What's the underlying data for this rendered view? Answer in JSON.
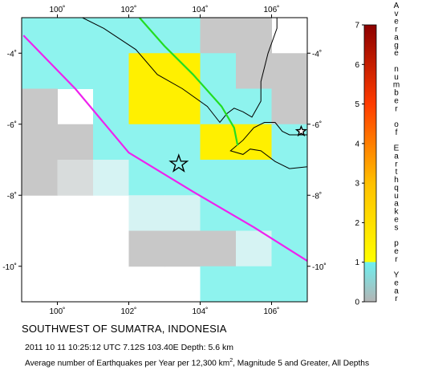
{
  "title": "SOUTHWEST OF SUMATRA, INDONESIA",
  "event_info": "2011 10 11 10:25:12 UTC 7.12S 103.40E Depth: 5.6 km",
  "caption": {
    "prefix": "Average number of Earthquakes per Year per 12,300 km",
    "sup": "2",
    "suffix": ", Magnitude 5 and Greater, All Depths"
  },
  "map": {
    "lon_range": [
      99,
      107
    ],
    "lat_range": [
      -11,
      -3
    ],
    "x_ticks": [
      {
        "value": 100,
        "label": "100˚"
      },
      {
        "value": 102,
        "label": "102˚"
      },
      {
        "value": 104,
        "label": "104˚"
      },
      {
        "value": 106,
        "label": "106˚"
      }
    ],
    "y_ticks": [
      {
        "value": -4,
        "label": "-4˚"
      },
      {
        "value": -6,
        "label": "-6˚"
      },
      {
        "value": -8,
        "label": "-8˚"
      },
      {
        "value": -10,
        "label": "-10˚"
      }
    ],
    "cell_size_deg": 1,
    "cells": [
      {
        "lon": 99,
        "lat": -3,
        "level": "cyan"
      },
      {
        "lon": 100,
        "lat": -3,
        "level": "cyan"
      },
      {
        "lon": 101,
        "lat": -3,
        "level": "cyan"
      },
      {
        "lon": 102,
        "lat": -3,
        "level": "cyan"
      },
      {
        "lon": 103,
        "lat": -3,
        "level": "cyan"
      },
      {
        "lon": 104,
        "lat": -3,
        "level": "gray"
      },
      {
        "lon": 105,
        "lat": -3,
        "level": "gray"
      },
      {
        "lon": 99,
        "lat": -4,
        "level": "cyan"
      },
      {
        "lon": 100,
        "lat": -4,
        "level": "cyan"
      },
      {
        "lon": 101,
        "lat": -4,
        "level": "cyan"
      },
      {
        "lon": 102,
        "lat": -4,
        "level": "yellow"
      },
      {
        "lon": 103,
        "lat": -4,
        "level": "yellow"
      },
      {
        "lon": 104,
        "lat": -4,
        "level": "cyan"
      },
      {
        "lon": 105,
        "lat": -4,
        "level": "gray"
      },
      {
        "lon": 106,
        "lat": -4,
        "level": "gray"
      },
      {
        "lon": 99,
        "lat": -5,
        "level": "gray"
      },
      {
        "lon": 101,
        "lat": -5,
        "level": "cyan"
      },
      {
        "lon": 102,
        "lat": -5,
        "level": "yellow"
      },
      {
        "lon": 103,
        "lat": -5,
        "level": "yellow"
      },
      {
        "lon": 104,
        "lat": -5,
        "level": "cyan"
      },
      {
        "lon": 105,
        "lat": -5,
        "level": "cyan"
      },
      {
        "lon": 106,
        "lat": -5,
        "level": "gray"
      },
      {
        "lon": 99,
        "lat": -6,
        "level": "gray"
      },
      {
        "lon": 100,
        "lat": -6,
        "level": "gray"
      },
      {
        "lon": 101,
        "lat": -6,
        "level": "cyan"
      },
      {
        "lon": 102,
        "lat": -6,
        "level": "cyan"
      },
      {
        "lon": 103,
        "lat": -6,
        "level": "cyan"
      },
      {
        "lon": 104,
        "lat": -6,
        "level": "yellow"
      },
      {
        "lon": 105,
        "lat": -6,
        "level": "yellow"
      },
      {
        "lon": 106,
        "lat": -6,
        "level": "cyan"
      },
      {
        "lon": 99,
        "lat": -7,
        "level": "gray"
      },
      {
        "lon": 100,
        "lat": -7,
        "level": "lightgray"
      },
      {
        "lon": 101,
        "lat": -7,
        "level": "lightcyan"
      },
      {
        "lon": 102,
        "lat": -7,
        "level": "cyan"
      },
      {
        "lon": 103,
        "lat": -7,
        "level": "cyan"
      },
      {
        "lon": 104,
        "lat": -7,
        "level": "cyan"
      },
      {
        "lon": 105,
        "lat": -7,
        "level": "cyan"
      },
      {
        "lon": 106,
        "lat": -7,
        "level": "cyan"
      },
      {
        "lon": 102,
        "lat": -8,
        "level": "lightcyan"
      },
      {
        "lon": 103,
        "lat": -8,
        "level": "lightcyan"
      },
      {
        "lon": 104,
        "lat": -8,
        "level": "cyan"
      },
      {
        "lon": 105,
        "lat": -8,
        "level": "cyan"
      },
      {
        "lon": 106,
        "lat": -8,
        "level": "cyan"
      },
      {
        "lon": 102,
        "lat": -9,
        "level": "gray"
      },
      {
        "lon": 103,
        "lat": -9,
        "level": "gray"
      },
      {
        "lon": 104,
        "lat": -9,
        "level": "gray"
      },
      {
        "lon": 105,
        "lat": -9,
        "level": "lightcyan"
      },
      {
        "lon": 106,
        "lat": -9,
        "level": "cyan"
      },
      {
        "lon": 104,
        "lat": -10,
        "level": "cyan"
      },
      {
        "lon": 105,
        "lat": -10,
        "level": "cyan"
      },
      {
        "lon": 106,
        "lat": -10,
        "level": "cyan"
      },
      {
        "lon": 104,
        "lat": -11,
        "level": "gray"
      },
      {
        "lon": 105,
        "lat": -11,
        "level": "gray"
      },
      {
        "lon": 106,
        "lat": -11,
        "level": "gray"
      }
    ],
    "palette": {
      "gray": "#c8c8c8",
      "lightgray": "#d8dcdc",
      "lightcyan": "#d6f3f3",
      "cyan": "#8ef3ee",
      "yellow": "#fff000"
    },
    "trench_line": [
      [
        99.05,
        -3.5
      ],
      [
        100.5,
        -5.0
      ],
      [
        102.0,
        -6.8
      ],
      [
        103.8,
        -7.9
      ],
      [
        105.5,
        -8.9
      ],
      [
        107.0,
        -9.85
      ]
    ],
    "fault_line": [
      [
        102.3,
        -3.0
      ],
      [
        103.0,
        -3.8
      ],
      [
        103.8,
        -4.6
      ],
      [
        104.6,
        -5.5
      ],
      [
        104.95,
        -6.1
      ],
      [
        105.05,
        -6.6
      ]
    ],
    "sumatra_coast": [
      [
        100.7,
        -3.0
      ],
      [
        101.3,
        -3.3
      ],
      [
        102.2,
        -3.9
      ],
      [
        102.8,
        -4.6
      ],
      [
        103.5,
        -5.0
      ],
      [
        104.2,
        -5.5
      ],
      [
        104.55,
        -5.95
      ],
      [
        104.75,
        -5.7
      ],
      [
        104.95,
        -5.55
      ],
      [
        105.2,
        -5.65
      ],
      [
        105.45,
        -5.8
      ],
      [
        105.7,
        -5.35
      ],
      [
        105.7,
        -4.8
      ],
      [
        105.9,
        -4.0
      ],
      [
        106.15,
        -3.3
      ],
      [
        106.15,
        -3.0
      ]
    ],
    "java_coast": [
      [
        106.1,
        -5.95
      ],
      [
        106.3,
        -6.2
      ],
      [
        106.5,
        -6.3
      ],
      [
        107.0,
        -6.3
      ],
      [
        107.0,
        -7.2
      ],
      [
        106.5,
        -7.25
      ],
      [
        106.1,
        -7.05
      ],
      [
        105.7,
        -6.75
      ],
      [
        105.4,
        -6.7
      ],
      [
        105.2,
        -6.85
      ],
      [
        104.85,
        -6.75
      ],
      [
        105.2,
        -6.45
      ],
      [
        105.5,
        -6.1
      ],
      [
        105.8,
        -5.95
      ],
      [
        106.1,
        -5.95
      ]
    ],
    "epicenter": {
      "lon": 103.4,
      "lat": -7.12
    },
    "city_star": {
      "lon": 106.83,
      "lat": -6.2
    }
  },
  "colorbar": {
    "min": 0,
    "max": 7,
    "tick_labels": [
      "0",
      "1",
      "2",
      "3",
      "4",
      "5",
      "6",
      "7"
    ],
    "label_chars": [
      "A",
      "v",
      "e",
      "r",
      "a",
      "g",
      "e",
      "",
      "n",
      "u",
      "m",
      "b",
      "e",
      "r",
      "",
      "o",
      "f",
      "",
      "E",
      "a",
      "r",
      "t",
      "h",
      "q",
      "u",
      "a",
      "k",
      "e",
      "s",
      "",
      "p",
      "e",
      "r",
      "",
      "Y",
      "e",
      "a",
      "r"
    ],
    "stops": [
      {
        "value": 0,
        "color": "#b4b4b4"
      },
      {
        "value": 1,
        "color": "#6ef0f0"
      },
      {
        "value": 1,
        "color": "#ffff00"
      },
      {
        "value": 3,
        "color": "#ffc000"
      },
      {
        "value": 5,
        "color": "#ff3c00"
      },
      {
        "value": 7,
        "color": "#8c0000"
      }
    ]
  }
}
